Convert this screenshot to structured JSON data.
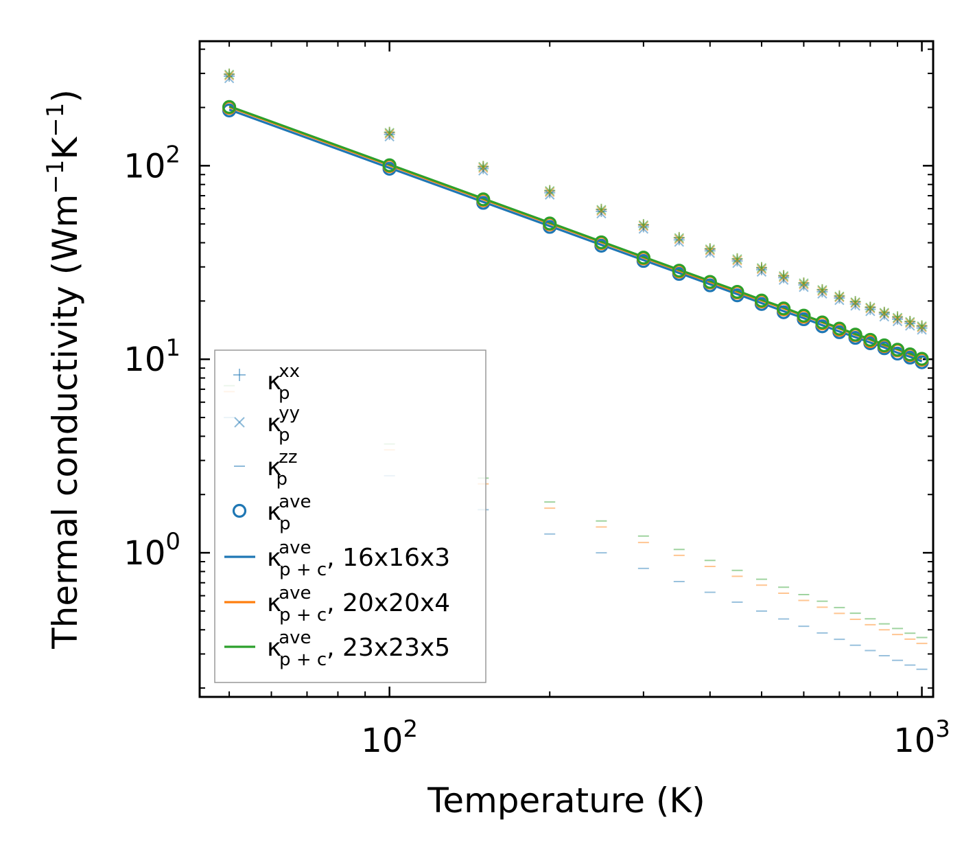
{
  "chart_data": {
    "type": "scatter",
    "title": "",
    "xlabel": "Temperature (K)",
    "ylabel": "Thermal conductivity (Wm",
    "ylabel_sup1": "−1",
    "ylabel_mid": "K",
    "ylabel_sup2": "−1",
    "ylabel_end": ")",
    "xscale": "log",
    "yscale": "log",
    "xlim": [
      44,
      1050
    ],
    "ylim": [
      0.18,
      440
    ],
    "x_ticks": [
      {
        "value": 100,
        "base": "10",
        "exp": "2"
      },
      {
        "value": 1000,
        "base": "10",
        "exp": "3"
      }
    ],
    "y_ticks": [
      {
        "value": 1,
        "base": "10",
        "exp": "0"
      },
      {
        "value": 10,
        "base": "10",
        "exp": "1"
      },
      {
        "value": 100,
        "base": "10",
        "exp": "2"
      }
    ],
    "x": [
      50,
      100,
      150,
      200,
      250,
      300,
      350,
      400,
      450,
      500,
      550,
      600,
      650,
      700,
      750,
      800,
      850,
      900,
      950,
      1000
    ],
    "colors": {
      "blue": "#1f77b4",
      "orange": "#ff7f0e",
      "green": "#2ca02c"
    },
    "series": [
      {
        "name": "16x16x3",
        "color": "#1f77b4",
        "kxx": [
          290.0,
          145.0,
          96.7,
          72.5,
          58.0,
          48.3,
          41.4,
          36.3,
          32.2,
          29.0,
          26.4,
          24.2,
          22.3,
          20.7,
          19.3,
          18.1,
          17.1,
          16.1,
          15.3,
          14.5
        ],
        "kyy": [
          283.0,
          141.5,
          94.3,
          70.8,
          56.6,
          47.2,
          40.4,
          35.4,
          31.4,
          28.3,
          25.7,
          23.6,
          21.8,
          20.2,
          18.9,
          17.7,
          16.6,
          15.7,
          14.9,
          14.2
        ],
        "kzz": [
          5.0,
          2.5,
          1.67,
          1.25,
          1.0,
          0.83,
          0.71,
          0.625,
          0.556,
          0.5,
          0.455,
          0.417,
          0.385,
          0.357,
          0.333,
          0.3125,
          0.294,
          0.278,
          0.263,
          0.25
        ],
        "kave": [
          193.0,
          96.5,
          64.3,
          48.3,
          38.6,
          32.2,
          27.6,
          24.1,
          21.4,
          19.3,
          17.5,
          16.1,
          14.8,
          13.8,
          12.9,
          12.1,
          11.4,
          10.7,
          10.2,
          9.65
        ],
        "kpc": [
          195.0,
          97.5,
          65.0,
          48.8,
          39.0,
          32.5,
          27.9,
          24.4,
          21.7,
          19.5,
          17.7,
          16.3,
          15.0,
          13.9,
          13.0,
          12.2,
          11.5,
          10.8,
          10.3,
          9.75
        ]
      },
      {
        "name": "20x20x4",
        "color": "#ff7f0e",
        "kxx": [
          296.0,
          148.0,
          98.7,
          74.0,
          59.2,
          49.3,
          42.3,
          37.0,
          32.9,
          29.6,
          26.9,
          24.7,
          22.8,
          21.1,
          19.7,
          18.5,
          17.4,
          16.4,
          15.6,
          14.8
        ],
        "kyy": [
          292.0,
          146.0,
          97.3,
          73.0,
          58.4,
          48.7,
          41.7,
          36.5,
          32.4,
          29.2,
          26.5,
          24.3,
          22.5,
          20.9,
          19.5,
          18.3,
          17.2,
          16.2,
          15.4,
          14.6
        ],
        "kzz": [
          6.8,
          3.4,
          2.27,
          1.7,
          1.36,
          1.13,
          0.97,
          0.85,
          0.756,
          0.68,
          0.618,
          0.567,
          0.523,
          0.486,
          0.453,
          0.425,
          0.4,
          0.378,
          0.358,
          0.34
        ],
        "kave": [
          199.0,
          99.5,
          66.3,
          49.8,
          39.8,
          33.2,
          28.4,
          24.9,
          22.1,
          19.9,
          18.1,
          16.6,
          15.3,
          14.2,
          13.3,
          12.4,
          11.7,
          11.1,
          10.5,
          9.95
        ],
        "kpc": [
          201.0,
          100.5,
          67.0,
          50.3,
          40.2,
          33.5,
          28.7,
          25.1,
          22.3,
          20.1,
          18.3,
          16.8,
          15.5,
          14.4,
          13.4,
          12.6,
          11.8,
          11.2,
          10.6,
          10.05
        ]
      },
      {
        "name": "23x23x5",
        "color": "#2ca02c",
        "kxx": [
          298.0,
          149.0,
          99.3,
          74.5,
          59.6,
          49.7,
          42.6,
          37.3,
          33.1,
          29.8,
          27.1,
          24.8,
          22.9,
          21.3,
          19.9,
          18.6,
          17.5,
          16.6,
          15.7,
          14.9
        ],
        "kyy": [
          296.0,
          148.0,
          98.7,
          74.0,
          59.2,
          49.3,
          42.3,
          37.0,
          32.9,
          29.6,
          26.9,
          24.7,
          22.8,
          21.1,
          19.7,
          18.5,
          17.4,
          16.4,
          15.6,
          14.8
        ],
        "kzz": [
          7.3,
          3.65,
          2.43,
          1.83,
          1.46,
          1.22,
          1.04,
          0.913,
          0.811,
          0.73,
          0.664,
          0.608,
          0.562,
          0.521,
          0.487,
          0.456,
          0.429,
          0.406,
          0.384,
          0.365
        ],
        "kave": [
          201.0,
          100.5,
          67.0,
          50.3,
          40.2,
          33.5,
          28.7,
          25.1,
          22.3,
          20.1,
          18.3,
          16.8,
          15.5,
          14.4,
          13.4,
          12.6,
          11.8,
          11.2,
          10.6,
          10.05
        ],
        "kpc": [
          203.0,
          101.5,
          67.7,
          50.8,
          40.6,
          33.8,
          29.0,
          25.4,
          22.6,
          20.3,
          18.5,
          16.9,
          15.6,
          14.5,
          13.5,
          12.7,
          11.9,
          11.3,
          10.7,
          10.15
        ]
      }
    ],
    "legend": {
      "position": "lower-left",
      "entries": [
        {
          "marker": "plus",
          "color": "#1f77b4",
          "base": "κ",
          "sup": "xx",
          "sub": "p",
          "suffix": ""
        },
        {
          "marker": "x",
          "color": "#1f77b4",
          "base": "κ",
          "sup": "yy",
          "sub": "p",
          "suffix": ""
        },
        {
          "marker": "hline",
          "color": "#1f77b4",
          "base": "κ",
          "sup": "zz",
          "sub": "p",
          "suffix": ""
        },
        {
          "marker": "circle",
          "color": "#1f77b4",
          "base": "κ",
          "sup": "ave",
          "sub": "p",
          "suffix": ""
        },
        {
          "marker": "line",
          "color": "#1f77b4",
          "base": "κ",
          "sup": "ave",
          "sub": "p + c",
          "suffix": ", 16x16x3"
        },
        {
          "marker": "line",
          "color": "#ff7f0e",
          "base": "κ",
          "sup": "ave",
          "sub": "p + c",
          "suffix": ", 20x20x4"
        },
        {
          "marker": "line",
          "color": "#2ca02c",
          "base": "κ",
          "sup": "ave",
          "sub": "p + c",
          "suffix": ", 23x23x5"
        }
      ]
    }
  }
}
